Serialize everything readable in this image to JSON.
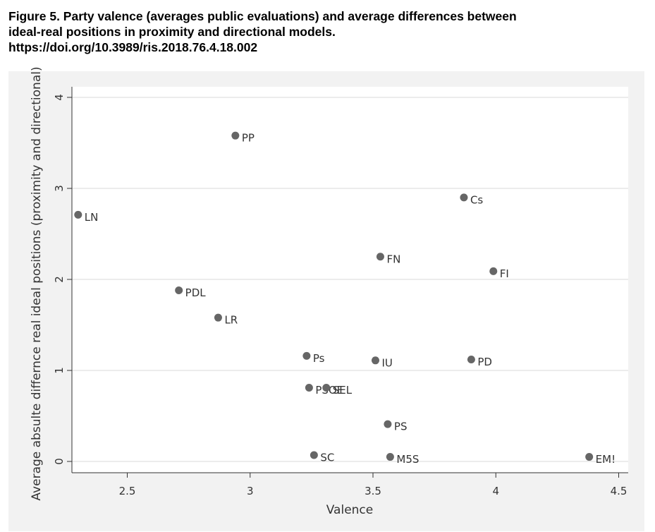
{
  "figure": {
    "title_lines": [
      "Figure 5. Party valence (averages public evaluations) and average differences between",
      "ideal-real positions in proximity and directional models.",
      "https://doi.org/10.3989/ris.2018.76.4.18.002"
    ]
  },
  "chart_data": {
    "type": "scatter",
    "xlabel": "Valence",
    "ylabel": "Average absulte differnce real ideal positions (proximity and directional)",
    "xlim": [
      2.3,
      4.5
    ],
    "ylim": [
      0,
      4.1
    ],
    "xticks": [
      2.5,
      3,
      3.5,
      4,
      4.5
    ],
    "xtick_labels": [
      "2.5",
      "3",
      "3.5",
      "4",
      "4.5"
    ],
    "yticks": [
      0,
      1,
      2,
      3,
      4
    ],
    "ytick_labels": [
      "0",
      "1",
      "2",
      "3",
      "4"
    ],
    "grid": true,
    "colors": {
      "marker": "#666666",
      "plot_bg": "#ffffff",
      "outer_bg": "#f2f2f2",
      "grid": "#e6e6e6"
    },
    "points": [
      {
        "label": "PP",
        "x": 2.94,
        "y": 3.58
      },
      {
        "label": "LN",
        "x": 2.3,
        "y": 2.71
      },
      {
        "label": "Cs",
        "x": 3.87,
        "y": 2.9
      },
      {
        "label": "FN",
        "x": 3.53,
        "y": 2.25
      },
      {
        "label": "FI",
        "x": 3.99,
        "y": 2.09
      },
      {
        "label": "PDL",
        "x": 2.71,
        "y": 1.88
      },
      {
        "label": "LR",
        "x": 2.87,
        "y": 1.58
      },
      {
        "label": "Ps",
        "x": 3.23,
        "y": 1.16
      },
      {
        "label": "IU",
        "x": 3.51,
        "y": 1.11
      },
      {
        "label": "PD",
        "x": 3.9,
        "y": 1.12
      },
      {
        "label": "PSOE",
        "x": 3.24,
        "y": 0.81
      },
      {
        "label": "SEL",
        "x": 3.31,
        "y": 0.81
      },
      {
        "label": "PS",
        "x": 3.56,
        "y": 0.41
      },
      {
        "label": "SC",
        "x": 3.26,
        "y": 0.07
      },
      {
        "label": "M5S",
        "x": 3.57,
        "y": 0.05
      },
      {
        "label": "EM!",
        "x": 4.38,
        "y": 0.05
      }
    ]
  }
}
